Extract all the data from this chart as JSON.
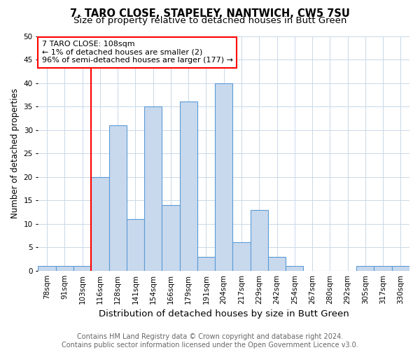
{
  "title1": "7, TARO CLOSE, STAPELEY, NANTWICH, CW5 7SU",
  "title2": "Size of property relative to detached houses in Butt Green",
  "xlabel": "Distribution of detached houses by size in Butt Green",
  "ylabel": "Number of detached properties",
  "categories": [
    "78sqm",
    "91sqm",
    "103sqm",
    "116sqm",
    "128sqm",
    "141sqm",
    "154sqm",
    "166sqm",
    "179sqm",
    "191sqm",
    "204sqm",
    "217sqm",
    "229sqm",
    "242sqm",
    "254sqm",
    "267sqm",
    "280sqm",
    "292sqm",
    "305sqm",
    "317sqm",
    "330sqm"
  ],
  "values": [
    1,
    1,
    1,
    20,
    31,
    11,
    35,
    14,
    36,
    3,
    40,
    6,
    13,
    3,
    1,
    0,
    0,
    0,
    1,
    1,
    1
  ],
  "bar_color": "#c8d9ee",
  "bar_edge_color": "#5b9bd5",
  "red_line_index": 2,
  "annotation_text": "7 TARO CLOSE: 108sqm\n← 1% of detached houses are smaller (2)\n96% of semi-detached houses are larger (177) →",
  "annotation_box_color": "white",
  "annotation_box_edge_color": "red",
  "ylim": [
    0,
    50
  ],
  "yticks": [
    0,
    5,
    10,
    15,
    20,
    25,
    30,
    35,
    40,
    45,
    50
  ],
  "footnote1": "Contains HM Land Registry data © Crown copyright and database right 2024.",
  "footnote2": "Contains public sector information licensed under the Open Government Licence v3.0.",
  "background_color": "#ffffff",
  "grid_color": "#c8d8e8",
  "title1_fontsize": 10.5,
  "title2_fontsize": 9.5,
  "xlabel_fontsize": 9.5,
  "ylabel_fontsize": 8.5,
  "tick_fontsize": 7.5,
  "annotation_fontsize": 8,
  "footnote_fontsize": 7
}
